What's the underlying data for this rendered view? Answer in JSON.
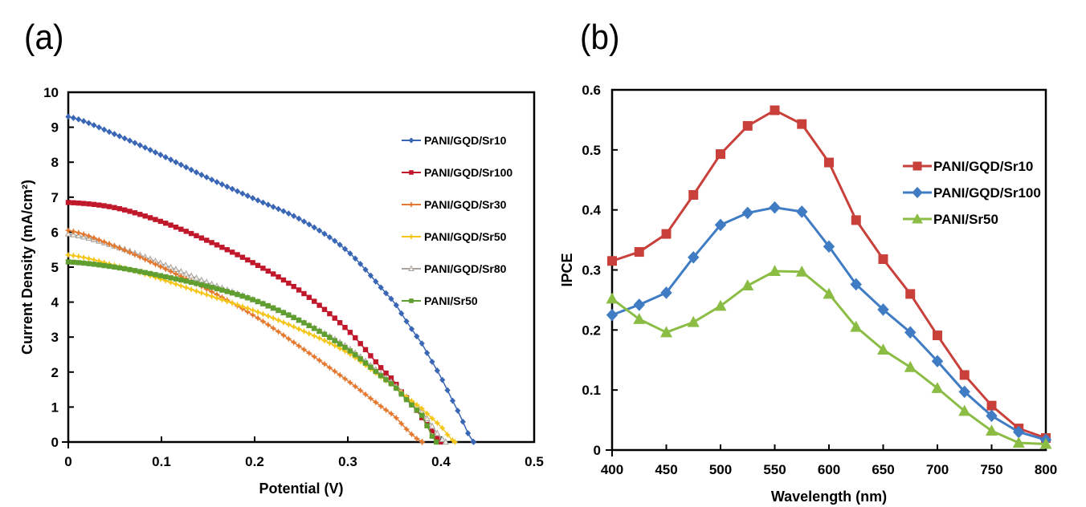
{
  "panels": {
    "a_label": "(a)",
    "b_label": "(b)"
  },
  "chart_data": [
    {
      "id": "a",
      "type": "line",
      "title": "",
      "xlabel": "Potential (V)",
      "ylabel": "Current Density (mA/cm²)",
      "xlim": [
        0,
        0.5
      ],
      "ylim": [
        0,
        10
      ],
      "xticks": [
        "0",
        "0.1",
        "0.2",
        "0.3",
        "0.4",
        "0.5"
      ],
      "yticks": [
        "0",
        "1",
        "2",
        "3",
        "4",
        "5",
        "6",
        "7",
        "8",
        "9",
        "10"
      ],
      "grid": false,
      "legend_position": "right",
      "series": [
        {
          "name": "PANI/GQD/Sr10",
          "color": "#3a67b5",
          "marker": "diamond",
          "x": [
            0,
            0.05,
            0.1,
            0.15,
            0.2,
            0.25,
            0.3,
            0.35,
            0.38,
            0.4,
            0.42,
            0.435
          ],
          "y": [
            9.3,
            8.8,
            8.2,
            7.55,
            6.95,
            6.35,
            5.45,
            4.0,
            2.8,
            1.85,
            0.8,
            0
          ]
        },
        {
          "name": "PANI/GQD/Sr100",
          "color": "#c0172b",
          "marker": "square",
          "x": [
            0,
            0.05,
            0.1,
            0.15,
            0.2,
            0.25,
            0.3,
            0.35,
            0.37,
            0.39,
            0.4
          ],
          "y": [
            6.85,
            6.7,
            6.3,
            5.75,
            5.1,
            4.3,
            3.2,
            1.75,
            1.05,
            0.35,
            0
          ]
        },
        {
          "name": "PANI/GQD/Sr30",
          "color": "#e4782e",
          "marker": "star",
          "x": [
            0,
            0.05,
            0.1,
            0.15,
            0.2,
            0.25,
            0.3,
            0.35,
            0.38
          ],
          "y": [
            6.05,
            5.6,
            5.0,
            4.35,
            3.6,
            2.7,
            1.75,
            0.75,
            0
          ]
        },
        {
          "name": "PANI/GQD/Sr50",
          "color": "#f5c518",
          "marker": "asterisk",
          "x": [
            0,
            0.05,
            0.1,
            0.15,
            0.2,
            0.25,
            0.3,
            0.35,
            0.38,
            0.4,
            0.415
          ],
          "y": [
            5.35,
            5.05,
            4.65,
            4.2,
            3.75,
            3.2,
            2.55,
            1.6,
            0.95,
            0.45,
            0
          ]
        },
        {
          "name": "PANI/GQD/Sr80",
          "color": "#a8a39e",
          "marker": "triangle-open",
          "x": [
            0,
            0.05,
            0.1,
            0.15,
            0.2,
            0.25,
            0.3,
            0.35,
            0.38,
            0.405
          ],
          "y": [
            5.95,
            5.6,
            5.1,
            4.55,
            4.05,
            3.45,
            2.7,
            1.65,
            0.85,
            0
          ]
        },
        {
          "name": "PANI/Sr50",
          "color": "#5f9e2f",
          "marker": "square",
          "x": [
            0,
            0.05,
            0.1,
            0.15,
            0.2,
            0.25,
            0.3,
            0.35,
            0.38,
            0.395
          ],
          "y": [
            5.15,
            5.0,
            4.75,
            4.45,
            4.05,
            3.45,
            2.65,
            1.6,
            0.75,
            0
          ]
        }
      ]
    },
    {
      "id": "b",
      "type": "line",
      "title": "",
      "xlabel": "Wavelength (nm)",
      "ylabel": "IPCE",
      "xlim": [
        400,
        800
      ],
      "ylim": [
        0,
        0.6
      ],
      "xticks": [
        "400",
        "450",
        "500",
        "550",
        "600",
        "650",
        "700",
        "750",
        "800"
      ],
      "yticks": [
        "0",
        "0.1",
        "0.2",
        "0.3",
        "0.4",
        "0.5",
        "0.6"
      ],
      "grid": false,
      "legend_position": "right",
      "x": [
        400,
        425,
        450,
        475,
        500,
        525,
        550,
        575,
        600,
        625,
        650,
        675,
        700,
        725,
        750,
        775,
        800
      ],
      "series": [
        {
          "name": "PANI/GQD/Sr10",
          "color": "#c9403b",
          "marker": "square",
          "values": [
            0.315,
            0.33,
            0.36,
            0.425,
            0.493,
            0.54,
            0.566,
            0.543,
            0.479,
            0.383,
            0.318,
            0.26,
            0.191,
            0.125,
            0.074,
            0.036,
            0.02
          ]
        },
        {
          "name": "PANI/GQD/Sr100",
          "color": "#3f7cc4",
          "marker": "diamond",
          "values": [
            0.225,
            0.242,
            0.262,
            0.321,
            0.375,
            0.395,
            0.404,
            0.397,
            0.339,
            0.276,
            0.234,
            0.196,
            0.148,
            0.097,
            0.057,
            0.03,
            0.017
          ]
        },
        {
          "name": "PANI/Sr50",
          "color": "#8bbd45",
          "marker": "triangle",
          "values": [
            0.252,
            0.218,
            0.196,
            0.213,
            0.24,
            0.274,
            0.298,
            0.297,
            0.26,
            0.205,
            0.167,
            0.138,
            0.103,
            0.065,
            0.032,
            0.012,
            0.01
          ]
        }
      ]
    }
  ]
}
